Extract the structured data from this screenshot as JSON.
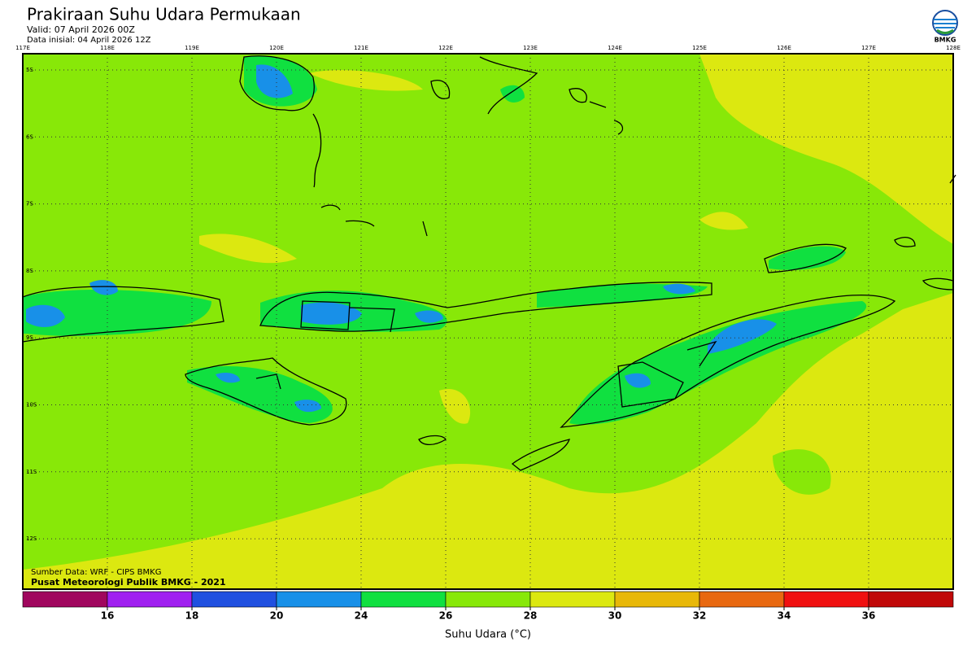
{
  "header": {
    "title": "Prakiraan Suhu Udara Permukaan",
    "valid": "Valid: 07 April 2026 00Z",
    "initial": "Data inisial: 04 April 2026 12Z",
    "logo": "BMKG"
  },
  "map": {
    "lon_labels": [
      "117E",
      "118E",
      "119E",
      "120E",
      "121E",
      "122E",
      "123E",
      "124E",
      "125E",
      "126E",
      "127E",
      "128E"
    ],
    "lat_labels": [
      "5S",
      "6S",
      "7S",
      "8S",
      "9S",
      "10S",
      "11S",
      "12S"
    ],
    "source": "Sumber Data: WRF - CIPS BMKG",
    "credit": "Pusat Meteorologi Publik BMKG - 2021"
  },
  "colorbar": {
    "colors": [
      "#a0065e",
      "#a020f0",
      "#2050e0",
      "#1890e8",
      "#10e040",
      "#88e808",
      "#dce810",
      "#e8b808",
      "#e86810",
      "#f01010",
      "#c00808"
    ],
    "ticks": [
      16,
      18,
      20,
      24,
      26,
      28,
      30,
      32,
      34,
      36
    ],
    "label": "Suhu Udara (°C)"
  }
}
